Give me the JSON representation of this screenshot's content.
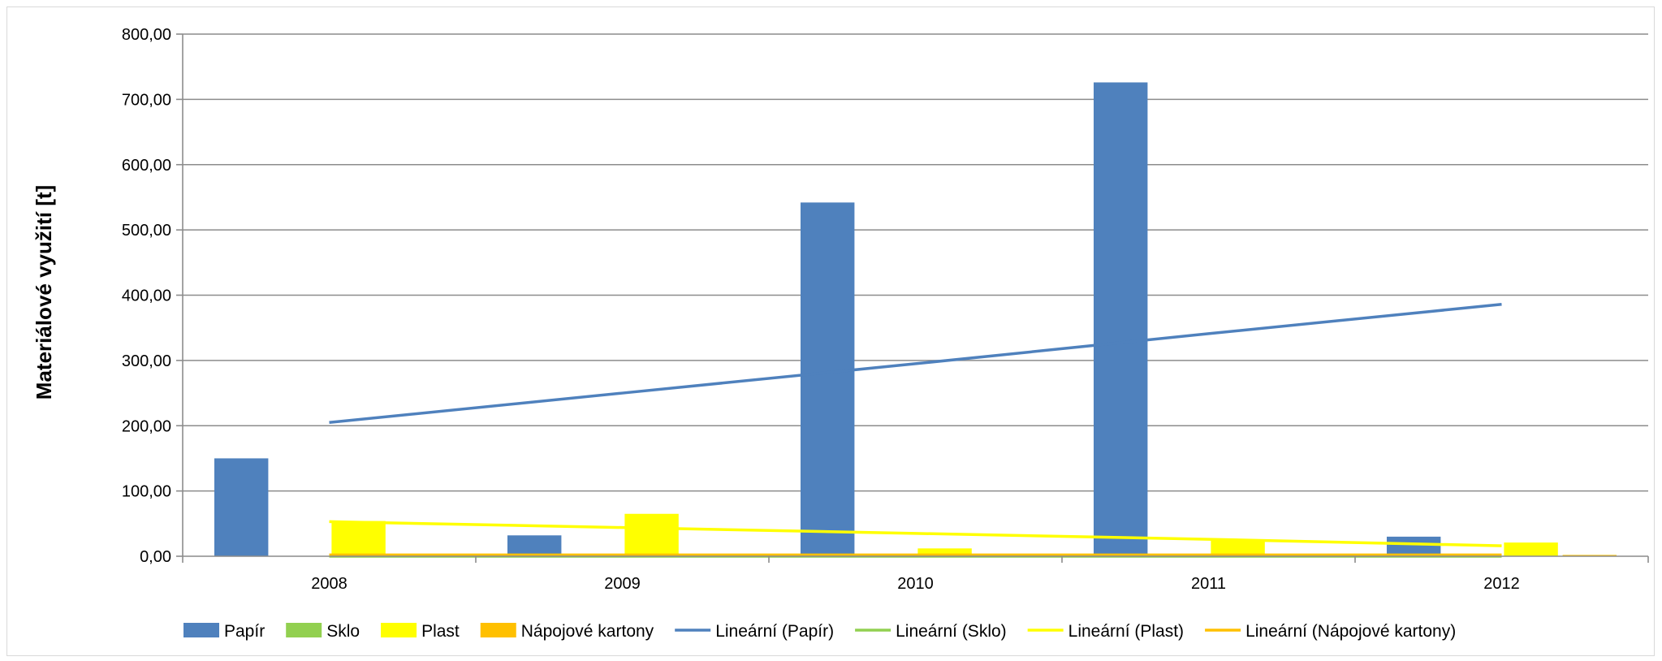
{
  "chart_data": {
    "type": "bar",
    "title": "",
    "xlabel": "",
    "ylabel": "Materiálové využití [t]",
    "categories": [
      "2008",
      "2009",
      "2010",
      "2011",
      "2012"
    ],
    "ylim": [
      0,
      800
    ],
    "yticks": [
      0,
      100,
      200,
      300,
      400,
      500,
      600,
      700,
      800
    ],
    "ytick_labels": [
      "0,00",
      "100,00",
      "200,00",
      "300,00",
      "400,00",
      "500,00",
      "600,00",
      "700,00",
      "800,00"
    ],
    "grid": true,
    "legend_position": "bottom",
    "series": [
      {
        "name": "Papír",
        "color": "#4f81bd",
        "values": [
          150,
          32,
          542,
          726,
          30
        ]
      },
      {
        "name": "Sklo",
        "color": "#92d050",
        "values": [
          0,
          0,
          0,
          0,
          0
        ]
      },
      {
        "name": "Plast",
        "color": "#ffff00",
        "values": [
          54,
          65,
          12,
          25,
          21
        ]
      },
      {
        "name": "Nápojové kartony",
        "color": "#ffc000",
        "values": [
          2,
          2,
          2,
          2,
          2
        ]
      }
    ],
    "trendlines": [
      {
        "name": "Lineární (Papír)",
        "color": "#4f81bd",
        "values": [
          205,
          250,
          295,
          341,
          386
        ]
      },
      {
        "name": "Lineární (Sklo)",
        "color": "#92d050",
        "values": [
          0,
          0,
          0,
          0,
          0
        ]
      },
      {
        "name": "Lineární (Plast)",
        "color": "#ffff00",
        "values": [
          53,
          44,
          35,
          26,
          16
        ]
      },
      {
        "name": "Lineární (Nápojové kartony)",
        "color": "#ffc000",
        "values": [
          2,
          2,
          2,
          2,
          2
        ]
      }
    ]
  }
}
